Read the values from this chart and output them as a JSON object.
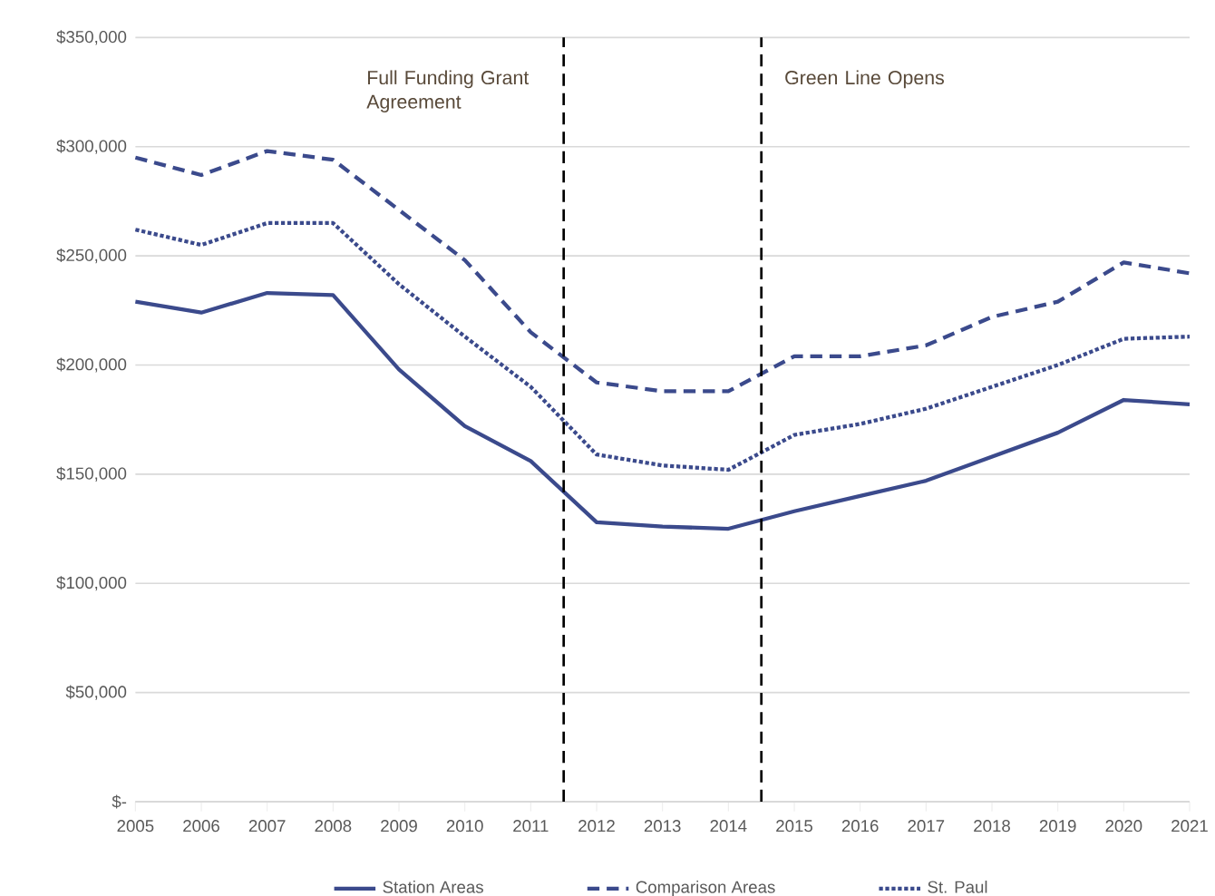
{
  "chart_data": {
    "type": "line",
    "x": [
      2005,
      2006,
      2007,
      2008,
      2009,
      2010,
      2011,
      2012,
      2013,
      2014,
      2015,
      2016,
      2017,
      2018,
      2019,
      2020,
      2021
    ],
    "series": [
      {
        "name": "Station Areas",
        "color": "#3b4a8c",
        "line_style": "solid",
        "values": [
          229000,
          224000,
          233000,
          232000,
          198000,
          172000,
          156000,
          128000,
          126000,
          125000,
          133000,
          140000,
          147000,
          158000,
          169000,
          184000,
          182000
        ]
      },
      {
        "name": "Comparison Areas",
        "color": "#3b4a8c",
        "line_style": "dashed",
        "values": [
          295000,
          287000,
          298000,
          294000,
          271000,
          248000,
          215000,
          192000,
          188000,
          188000,
          204000,
          204000,
          209000,
          222000,
          229000,
          247000,
          242000
        ]
      },
      {
        "name": "St. Paul",
        "color": "#3b4a8c",
        "line_style": "dotted",
        "values": [
          262000,
          255000,
          265000,
          265000,
          237000,
          213000,
          190000,
          159000,
          154000,
          152000,
          168000,
          173000,
          180000,
          190000,
          200000,
          212000,
          213000
        ]
      }
    ],
    "xlim": [
      2005,
      2021
    ],
    "xticks": [
      2005,
      2006,
      2007,
      2008,
      2009,
      2010,
      2011,
      2012,
      2013,
      2014,
      2015,
      2016,
      2017,
      2018,
      2019,
      2020,
      2021
    ],
    "ylim": [
      0,
      350000
    ],
    "yticks": [
      {
        "value": 0,
        "label": "$-"
      },
      {
        "value": 50000,
        "label": "$50,000"
      },
      {
        "value": 100000,
        "label": "$100,000"
      },
      {
        "value": 150000,
        "label": "$150,000"
      },
      {
        "value": 200000,
        "label": "$200,000"
      },
      {
        "value": 250000,
        "label": "$250,000"
      },
      {
        "value": 300000,
        "label": "$300,000"
      },
      {
        "value": 350000,
        "label": "$350,000"
      }
    ],
    "ref_lines": [
      {
        "axis": "x",
        "value": 2011.5,
        "label": "Full Funding Grant Agreement",
        "color": "#000000",
        "line_style": "dashed"
      },
      {
        "axis": "x",
        "value": 2014.5,
        "label": "Green Line Opens",
        "color": "#000000",
        "line_style": "dashed"
      }
    ],
    "grid": "y",
    "legend": "bottom",
    "marker": "none"
  }
}
